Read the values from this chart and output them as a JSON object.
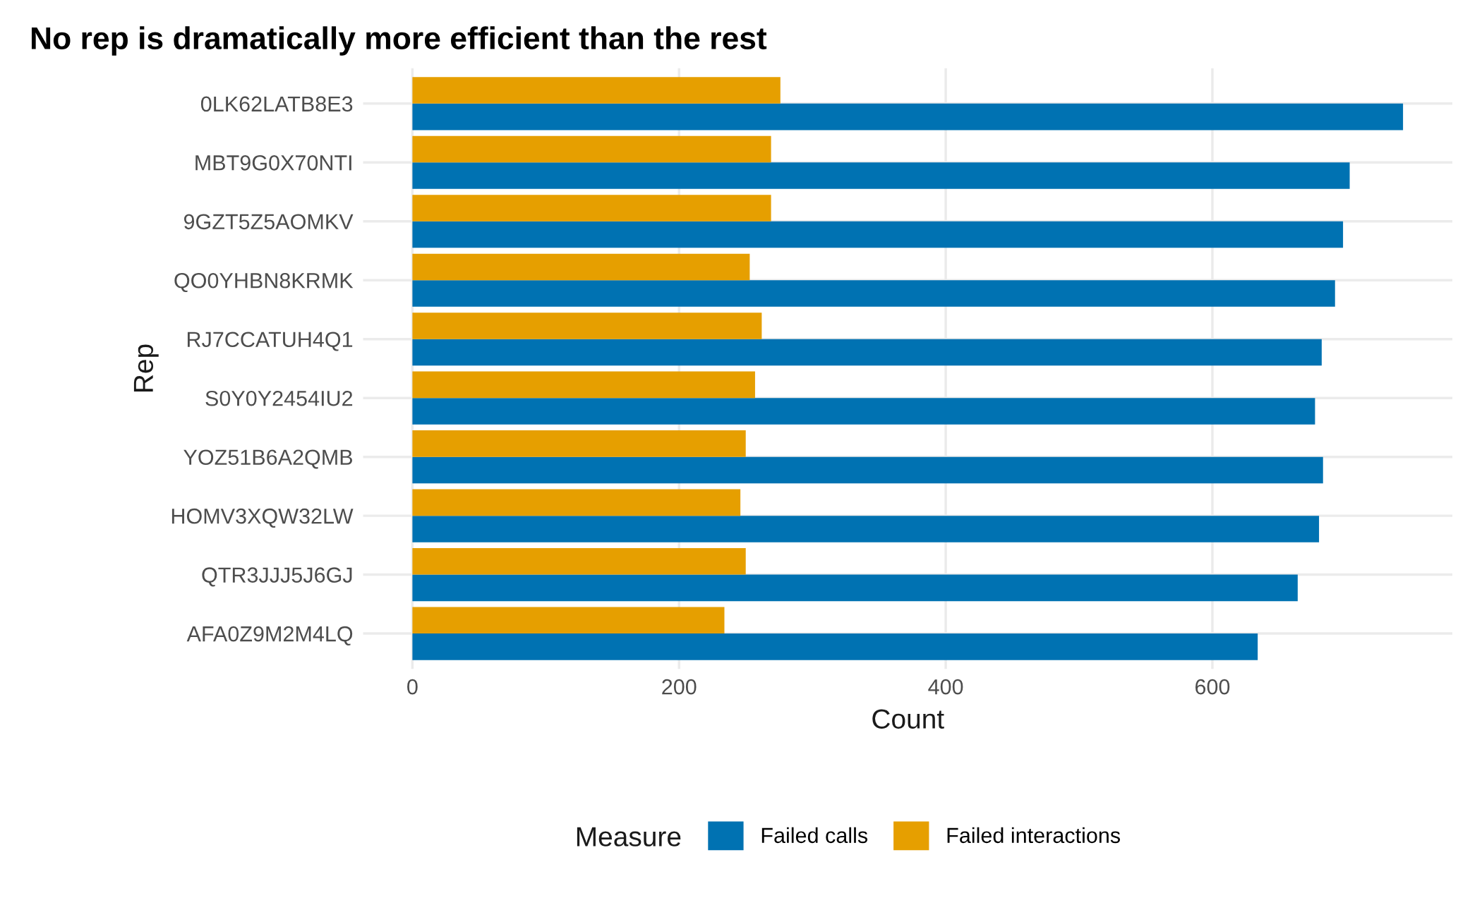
{
  "chart_data": {
    "type": "bar",
    "orientation": "horizontal",
    "title": "No rep is dramatically more efficient than the rest",
    "xlabel": "Count",
    "ylabel": "Rep",
    "legend_title": "Measure",
    "legend": "bottom",
    "grid": true,
    "categories": [
      "0LK62LATB8E3",
      "MBT9G0X70NTI",
      "9GZT5Z5AOMKV",
      "QO0YHBN8KRMK",
      "RJ7CCATUH4Q1",
      "S0Y0Y2454IU2",
      "YOZ51B6A2QMB",
      "HOMV3XQW32LW",
      "QTR3JJJ5J6GJ",
      "AFA0Z9M2M4LQ"
    ],
    "series": [
      {
        "name": "Failed calls",
        "color": "#0072b2",
        "values": [
          743,
          703,
          698,
          692,
          682,
          677,
          683,
          680,
          664,
          634
        ]
      },
      {
        "name": "Failed interactions",
        "color": "#e69f00",
        "values": [
          276,
          269,
          269,
          253,
          262,
          257,
          250,
          246,
          250,
          234
        ]
      }
    ],
    "xlim": [
      -37,
      780
    ],
    "xticks": [
      0,
      200,
      400,
      600
    ]
  }
}
